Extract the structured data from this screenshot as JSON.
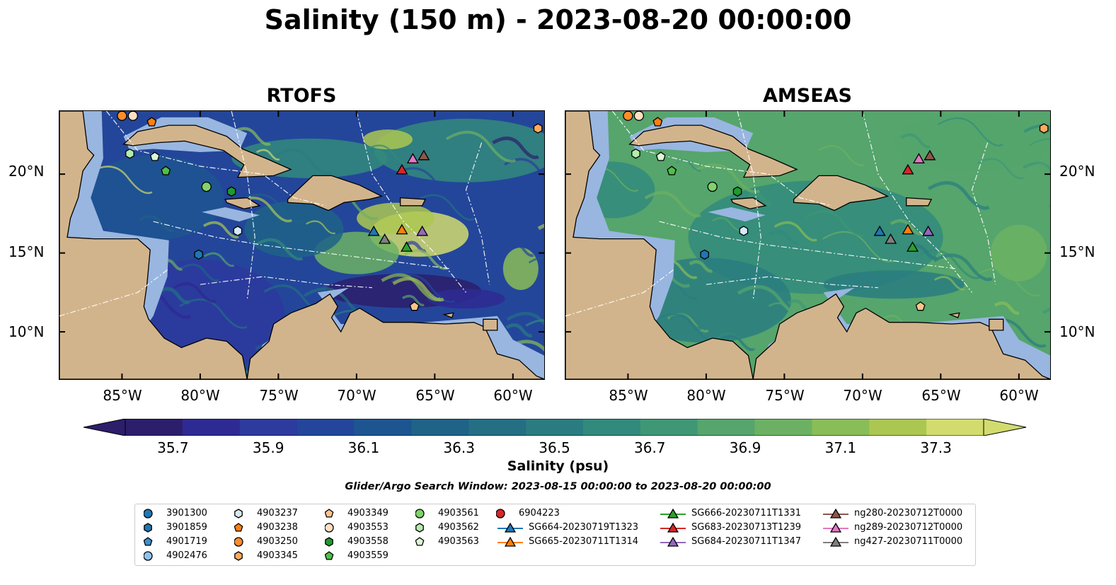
{
  "title": "Salinity (150 m) - 2023-08-20 00:00:00",
  "panels": [
    {
      "title": "RTOFS",
      "field": "rtofs"
    },
    {
      "title": "AMSEAS",
      "field": "amseas"
    }
  ],
  "map_axes": {
    "lon_range": [
      -89,
      -58
    ],
    "lat_range": [
      7,
      24
    ],
    "x_ticks": [
      "85°W",
      "80°W",
      "75°W",
      "70°W",
      "65°W",
      "60°W"
    ],
    "y_ticks": [
      "20°N",
      "15°N",
      "10°N"
    ]
  },
  "colorbar": {
    "label": "Salinity (psu)",
    "min": 35.6,
    "max": 37.4,
    "extend": "both",
    "ticks": [
      "35.7",
      "35.9",
      "36.1",
      "36.3",
      "36.5",
      "36.7",
      "36.9",
      "37.1",
      "37.3"
    ],
    "colors": [
      "#2c1e6b",
      "#2e2a93",
      "#2d3a9e",
      "#23469a",
      "#1d5590",
      "#1f6387",
      "#246f83",
      "#2a7c80",
      "#328a7c",
      "#3f9775",
      "#55a56c",
      "#6cb163",
      "#89bd57",
      "#abc752",
      "#d2dc6e"
    ]
  },
  "search_window": "Glider/Argo Search Window: 2023-08-15 00:00:00 to 2023-08-20 00:00:00",
  "land_color": "#d2b48c",
  "shelf_color": "#98b6e0",
  "legend": {
    "items": [
      {
        "label": "3901300",
        "marker": "circle",
        "color": "#1f77b4"
      },
      {
        "label": "3901859",
        "marker": "hexagon",
        "color": "#1f77b4"
      },
      {
        "label": "4901719",
        "marker": "pentagon",
        "color": "#3a8fd0"
      },
      {
        "label": "4902476",
        "marker": "circle",
        "color": "#8fc3ea"
      },
      {
        "label": "4903237",
        "marker": "hexagon",
        "color": "#d6e9f8"
      },
      {
        "label": "4903238",
        "marker": "pentagon",
        "color": "#ff7f0e"
      },
      {
        "label": "4903250",
        "marker": "circle",
        "color": "#ff8c2a"
      },
      {
        "label": "4903345",
        "marker": "hexagon",
        "color": "#ffab5e"
      },
      {
        "label": "4903349",
        "marker": "pentagon",
        "color": "#ffc48d"
      },
      {
        "label": "4903553",
        "marker": "circle",
        "color": "#ffe0c2"
      },
      {
        "label": "4903558",
        "marker": "hexagon",
        "color": "#1e9a30"
      },
      {
        "label": "4903559",
        "marker": "pentagon",
        "color": "#4fbf48"
      },
      {
        "label": "4903561",
        "marker": "circle",
        "color": "#7fd36c"
      },
      {
        "label": "4903562",
        "marker": "hexagon",
        "color": "#b4ecac"
      },
      {
        "label": "4903563",
        "marker": "pentagon",
        "color": "#dcf7d6"
      },
      {
        "label": "6904223",
        "marker": "circle",
        "color": "#d62728"
      },
      {
        "label": "SG664-20230719T1323",
        "marker": "triangle",
        "color": "#1f77b4"
      },
      {
        "label": "SG665-20230711T1314",
        "marker": "triangle",
        "color": "#ff7f0e"
      },
      {
        "label": "SG666-20230711T1331",
        "marker": "triangle",
        "color": "#2ca02c"
      },
      {
        "label": "SG683-20230713T1239",
        "marker": "triangle",
        "color": "#d62728"
      },
      {
        "label": "SG684-20230711T1347",
        "marker": "triangle",
        "color": "#9467bd"
      },
      {
        "label": "ng280-20230712T0000",
        "marker": "triangle",
        "color": "#8c564b"
      },
      {
        "label": "ng289-20230712T0000",
        "marker": "triangle",
        "color": "#e377c2"
      },
      {
        "label": "ng427-20230711T0000",
        "marker": "triangle",
        "color": "#7f7f7f"
      }
    ]
  },
  "observations": [
    {
      "id": "4903250",
      "lon": -85.0,
      "lat": 23.7
    },
    {
      "id": "4903553",
      "lon": -84.3,
      "lat": 23.7
    },
    {
      "id": "4903238",
      "lon": -83.1,
      "lat": 23.3
    },
    {
      "id": "4903345",
      "lon": -58.4,
      "lat": 22.9
    },
    {
      "id": "4903562",
      "lon": -84.5,
      "lat": 21.3
    },
    {
      "id": "4903563",
      "lon": -82.9,
      "lat": 21.1
    },
    {
      "id": "4903559",
      "lon": -82.2,
      "lat": 20.2
    },
    {
      "id": "4903561",
      "lon": -79.6,
      "lat": 19.2
    },
    {
      "id": "4903558",
      "lon": -78.0,
      "lat": 18.9
    },
    {
      "id": "4903237",
      "lon": -77.6,
      "lat": 16.4
    },
    {
      "id": "3901859",
      "lon": -80.1,
      "lat": 14.9
    },
    {
      "id": "4903349",
      "lon": -66.3,
      "lat": 11.6
    },
    {
      "id": "SG683-20230713T1239",
      "lon": -67.1,
      "lat": 20.3
    },
    {
      "id": "ng289-20230712T0000",
      "lon": -66.4,
      "lat": 21.0
    },
    {
      "id": "ng280-20230712T0000",
      "lon": -65.7,
      "lat": 21.2
    },
    {
      "id": "SG664-20230719T1323",
      "lon": -68.9,
      "lat": 16.4
    },
    {
      "id": "ng427-20230711T0000",
      "lon": -68.2,
      "lat": 15.9
    },
    {
      "id": "SG665-20230711T1314",
      "lon": -67.1,
      "lat": 16.5
    },
    {
      "id": "SG666-20230711T1331",
      "lon": -66.8,
      "lat": 15.4
    },
    {
      "id": "SG684-20230711T1347",
      "lon": -65.8,
      "lat": 16.4
    }
  ]
}
